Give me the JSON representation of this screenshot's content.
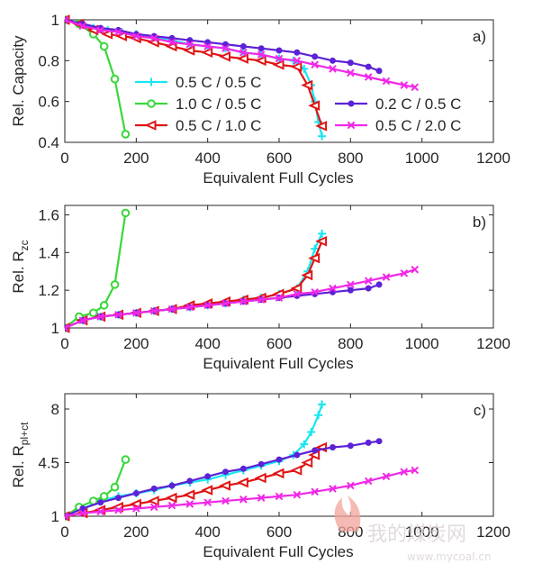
{
  "chart_data": [
    {
      "type": "line",
      "panel": "a)",
      "xlabel": "Equivalent Full Cycles",
      "ylabel": "Rel. Capacity",
      "xlim": [
        0,
        1200
      ],
      "ylim": [
        0.4,
        1.0
      ],
      "xticks": [
        0,
        200,
        400,
        600,
        800,
        1000,
        1200
      ],
      "yticks": [
        0.4,
        0.6,
        0.8,
        1.0
      ],
      "ytick_labels": [
        "0.4",
        "0.6",
        "0.8",
        "1"
      ],
      "grid": false,
      "legend_placement": "inside center",
      "series": [
        {
          "name": "0.5 C / 0.5 C",
          "color": "#19e6f0",
          "marker": "plus",
          "x": [
            0,
            40,
            80,
            120,
            160,
            200,
            250,
            300,
            350,
            400,
            450,
            500,
            550,
            600,
            640,
            670,
            690,
            700,
            710,
            720
          ],
          "y": [
            1.0,
            0.98,
            0.96,
            0.95,
            0.94,
            0.93,
            0.91,
            0.9,
            0.88,
            0.87,
            0.86,
            0.84,
            0.83,
            0.81,
            0.8,
            0.76,
            0.68,
            0.6,
            0.5,
            0.43
          ]
        },
        {
          "name": "1.0 C / 0.5 C",
          "color": "#38d838",
          "marker": "circle",
          "x": [
            0,
            40,
            80,
            110,
            140,
            170
          ],
          "y": [
            1.0,
            0.98,
            0.93,
            0.87,
            0.71,
            0.44
          ]
        },
        {
          "name": "0.5 C / 1.0 C",
          "color": "#e01414",
          "marker": "triangle-left",
          "x": [
            0,
            40,
            80,
            120,
            160,
            200,
            250,
            300,
            350,
            400,
            450,
            500,
            550,
            600,
            650,
            680,
            700,
            720
          ],
          "y": [
            1.0,
            0.98,
            0.95,
            0.93,
            0.92,
            0.91,
            0.89,
            0.87,
            0.85,
            0.84,
            0.82,
            0.81,
            0.8,
            0.78,
            0.77,
            0.68,
            0.58,
            0.48
          ]
        },
        {
          "name": "0.2 C / 0.5 C",
          "color": "#5c22d6",
          "marker": "dot",
          "x": [
            0,
            50,
            100,
            150,
            200,
            250,
            300,
            350,
            400,
            450,
            500,
            550,
            600,
            650,
            700,
            750,
            800,
            850,
            880
          ],
          "y": [
            1.0,
            0.98,
            0.96,
            0.95,
            0.93,
            0.92,
            0.91,
            0.9,
            0.89,
            0.88,
            0.87,
            0.86,
            0.85,
            0.84,
            0.82,
            0.8,
            0.79,
            0.77,
            0.75
          ]
        },
        {
          "name": "0.5 C / 2.0 C",
          "color": "#f028e8",
          "marker": "x",
          "x": [
            0,
            50,
            100,
            150,
            200,
            250,
            300,
            350,
            400,
            450,
            500,
            550,
            600,
            650,
            700,
            750,
            800,
            850,
            900,
            950,
            980
          ],
          "y": [
            1.0,
            0.97,
            0.95,
            0.94,
            0.92,
            0.91,
            0.89,
            0.88,
            0.87,
            0.86,
            0.84,
            0.83,
            0.81,
            0.8,
            0.78,
            0.76,
            0.74,
            0.72,
            0.7,
            0.68,
            0.67
          ]
        }
      ]
    },
    {
      "type": "line",
      "panel": "b)",
      "xlabel": "Equivalent Full Cycles",
      "ylabel": "Rel. R",
      "ylabel_sub": "zc",
      "xlim": [
        0,
        1200
      ],
      "ylim": [
        1.0,
        1.65
      ],
      "xticks": [
        0,
        200,
        400,
        600,
        800,
        1000,
        1200
      ],
      "yticks": [
        1.0,
        1.2,
        1.4,
        1.6
      ],
      "ytick_labels": [
        "1",
        "1.2",
        "1.4",
        "1.6"
      ],
      "grid": false,
      "series": [
        {
          "name": "0.5 C / 0.5 C",
          "color": "#19e6f0",
          "marker": "plus",
          "x": [
            0,
            50,
            100,
            150,
            200,
            250,
            300,
            350,
            400,
            450,
            500,
            550,
            600,
            650,
            680,
            700,
            720
          ],
          "y": [
            1.0,
            1.04,
            1.06,
            1.07,
            1.08,
            1.09,
            1.1,
            1.11,
            1.12,
            1.13,
            1.15,
            1.16,
            1.18,
            1.21,
            1.3,
            1.42,
            1.5
          ]
        },
        {
          "name": "1.0 C / 0.5 C",
          "color": "#38d838",
          "marker": "circle",
          "x": [
            0,
            40,
            80,
            110,
            140,
            170
          ],
          "y": [
            1.0,
            1.06,
            1.08,
            1.12,
            1.23,
            1.61
          ]
        },
        {
          "name": "0.5 C / 1.0 C",
          "color": "#e01414",
          "marker": "triangle-left",
          "x": [
            0,
            50,
            100,
            150,
            200,
            250,
            300,
            350,
            400,
            450,
            500,
            550,
            600,
            650,
            680,
            700,
            720
          ],
          "y": [
            1.0,
            1.04,
            1.06,
            1.07,
            1.08,
            1.09,
            1.1,
            1.12,
            1.13,
            1.14,
            1.15,
            1.16,
            1.18,
            1.21,
            1.28,
            1.37,
            1.46
          ]
        },
        {
          "name": "0.2 C / 0.5 C",
          "color": "#5c22d6",
          "marker": "dot",
          "x": [
            0,
            50,
            100,
            150,
            200,
            250,
            300,
            350,
            400,
            450,
            500,
            550,
            600,
            650,
            700,
            750,
            800,
            850,
            880
          ],
          "y": [
            1.0,
            1.04,
            1.06,
            1.07,
            1.08,
            1.09,
            1.1,
            1.11,
            1.12,
            1.13,
            1.14,
            1.15,
            1.16,
            1.17,
            1.18,
            1.19,
            1.2,
            1.21,
            1.23
          ]
        },
        {
          "name": "0.5 C / 2.0 C",
          "color": "#f028e8",
          "marker": "x",
          "x": [
            0,
            50,
            100,
            150,
            200,
            250,
            300,
            350,
            400,
            450,
            500,
            550,
            600,
            650,
            700,
            750,
            800,
            850,
            900,
            950,
            980
          ],
          "y": [
            1.0,
            1.04,
            1.06,
            1.07,
            1.08,
            1.09,
            1.1,
            1.11,
            1.12,
            1.13,
            1.14,
            1.15,
            1.16,
            1.18,
            1.19,
            1.21,
            1.23,
            1.25,
            1.27,
            1.29,
            1.31
          ]
        }
      ]
    },
    {
      "type": "line",
      "panel": "c)",
      "xlabel": "Equivalent Full Cycles",
      "ylabel": "Rel. R",
      "ylabel_sub": "pl+ct",
      "xlim": [
        0,
        1200
      ],
      "ylim": [
        1,
        9
      ],
      "xticks": [
        0,
        200,
        400,
        600,
        800,
        1000,
        1200
      ],
      "yticks": [
        1,
        4.5,
        8
      ],
      "ytick_labels": [
        "1",
        "4.5",
        "8"
      ],
      "grid": false,
      "series": [
        {
          "name": "0.5 C / 0.5 C",
          "color": "#19e6f0",
          "marker": "plus",
          "x": [
            0,
            50,
            100,
            150,
            200,
            250,
            300,
            350,
            400,
            450,
            500,
            550,
            600,
            640,
            670,
            690,
            710,
            720
          ],
          "y": [
            1.0,
            1.5,
            2.0,
            2.3,
            2.5,
            2.7,
            3.0,
            3.2,
            3.4,
            3.7,
            4.0,
            4.3,
            4.6,
            5.0,
            5.7,
            6.5,
            7.6,
            8.3
          ]
        },
        {
          "name": "1.0 C / 0.5 C",
          "color": "#38d838",
          "marker": "circle",
          "x": [
            0,
            40,
            80,
            110,
            140,
            170
          ],
          "y": [
            1.0,
            1.6,
            2.0,
            2.3,
            2.9,
            4.7
          ]
        },
        {
          "name": "0.5 C / 1.0 C",
          "color": "#e01414",
          "marker": "triangle-left",
          "x": [
            0,
            50,
            100,
            150,
            200,
            250,
            300,
            350,
            400,
            450,
            500,
            550,
            600,
            650,
            680,
            700,
            720
          ],
          "y": [
            1.0,
            1.2,
            1.4,
            1.6,
            1.8,
            2.0,
            2.2,
            2.4,
            2.7,
            3.0,
            3.2,
            3.5,
            3.8,
            4.0,
            4.5,
            5.0,
            5.5
          ]
        },
        {
          "name": "0.2 C / 0.5 C",
          "color": "#5c22d6",
          "marker": "dot",
          "x": [
            0,
            50,
            100,
            150,
            200,
            250,
            300,
            350,
            400,
            450,
            500,
            550,
            600,
            650,
            700,
            750,
            800,
            850,
            880
          ],
          "y": [
            1.0,
            1.5,
            1.9,
            2.2,
            2.5,
            2.8,
            3.0,
            3.3,
            3.6,
            3.9,
            4.1,
            4.4,
            4.7,
            5.0,
            5.3,
            5.5,
            5.6,
            5.8,
            5.9
          ]
        },
        {
          "name": "0.5 C / 2.0 C",
          "color": "#f028e8",
          "marker": "x",
          "x": [
            0,
            50,
            100,
            150,
            200,
            250,
            300,
            350,
            400,
            450,
            500,
            550,
            600,
            650,
            700,
            750,
            800,
            850,
            900,
            950,
            980
          ],
          "y": [
            1.0,
            1.2,
            1.3,
            1.4,
            1.5,
            1.6,
            1.7,
            1.8,
            1.9,
            2.0,
            2.1,
            2.2,
            2.3,
            2.4,
            2.6,
            2.8,
            3.0,
            3.3,
            3.6,
            3.9,
            4.0
          ]
        }
      ]
    }
  ],
  "watermark": {
    "brand_cn": "我的煤炭网",
    "url": "www.mycoal.cn"
  }
}
